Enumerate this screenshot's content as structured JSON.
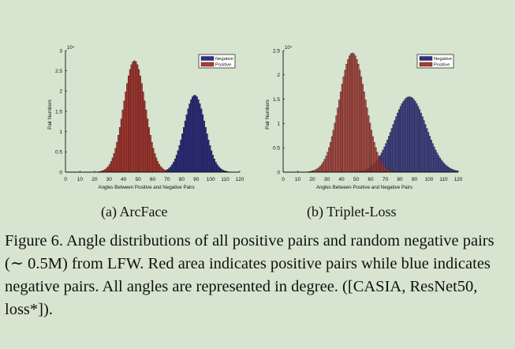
{
  "chart_data": [
    {
      "type": "bar",
      "subcaption": "(a)  ArcFace",
      "xlabel": "Angles Between Positive and Negative Pairs",
      "ylabel": "Pair Numbers",
      "y_multiplier": "10⁴",
      "xlim": [
        0,
        120
      ],
      "ylim": [
        0,
        3
      ],
      "xticks": [
        "0",
        "10",
        "20",
        "30",
        "40",
        "50",
        "60",
        "70",
        "80",
        "90",
        "100",
        "110",
        "120"
      ],
      "yticks": [
        "0",
        "0.5",
        "1",
        "1.5",
        "2",
        "2.5",
        "3"
      ],
      "legend": [
        "Negative",
        "Positive"
      ],
      "legend_position": "top-right",
      "series": [
        {
          "name": "Negative",
          "color": "#2e2f86",
          "mean": 89,
          "std": 7.2,
          "peak": 1.9
        },
        {
          "name": "Positive",
          "color": "#b23a32",
          "mean": 47.5,
          "std": 7.4,
          "peak": 2.75
        }
      ]
    },
    {
      "type": "bar",
      "subcaption": "(b)  Triplet-Loss",
      "xlabel": "Angles Between Positive and Negative Pairs",
      "ylabel": "Pair Numbers",
      "y_multiplier": "10⁴",
      "xlim": [
        0,
        120
      ],
      "ylim": [
        0,
        2.5
      ],
      "xticks": [
        "0",
        "10",
        "20",
        "30",
        "40",
        "50",
        "60",
        "70",
        "80",
        "90",
        "100",
        "110",
        "120"
      ],
      "yticks": [
        "0",
        "0.5",
        "1",
        "1.5",
        "2",
        "2.5"
      ],
      "legend": [
        "Negative",
        "Positive"
      ],
      "legend_position": "top-right",
      "series": [
        {
          "name": "Negative",
          "color": "#2e2f86",
          "mean": 86.5,
          "std": 11.5,
          "peak": 1.55
        },
        {
          "name": "Positive",
          "color": "#b23a32",
          "mean": 47.5,
          "std": 9.0,
          "peak": 2.45
        }
      ]
    }
  ],
  "caption": "Figure 6. Angle distributions of all positive pairs and random negative pairs (∼ 0.5M) from LFW. Red area indicates positive pairs while blue indicates negative pairs.  All angles are represented in degree. ([CASIA, ResNet50, loss*])."
}
